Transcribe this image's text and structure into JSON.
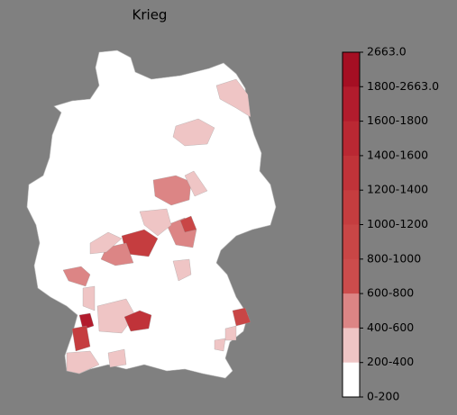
{
  "title": "Krieg",
  "colorbar": {
    "labels": [
      "2663.0",
      "1800-2663.0",
      "1600-1800",
      "1400-1600",
      "1200-1400",
      "1000-1200",
      "800-1000",
      "600-800",
      "400-600",
      "200-400",
      "0-200"
    ],
    "colors": [
      "#a50f23",
      "#b21c2d",
      "#ba2833",
      "#c03339",
      "#c53d3f",
      "#c94646",
      "#cc4c4c",
      "#dc8585",
      "#efc5c5",
      "#ffffff"
    ]
  }
}
